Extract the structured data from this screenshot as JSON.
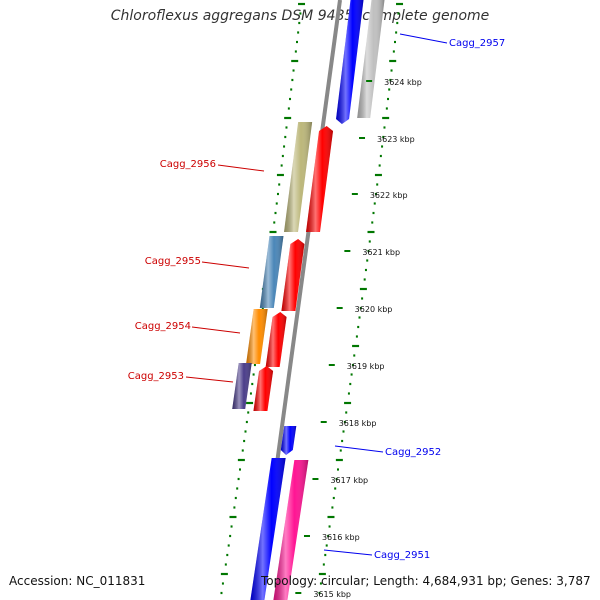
{
  "title": "Chloroflexus aggregans DSM 9485, complete genome",
  "footer": {
    "accession": "Accession: NC_011831",
    "summary": "Topology: circular; Length: 4,684,931 bp; Genes: 3,787"
  },
  "colors": {
    "forward": "#0000ee",
    "reverse": "#cc0000",
    "ticks": "#007700",
    "backbone": "#888888"
  },
  "scale_ticks": [
    "3624 kbp",
    "3623 kbp",
    "3622 kbp",
    "3621 kbp",
    "3620 kbp",
    "3619 kbp",
    "3618 kbp",
    "3617 kbp",
    "3616 kbp",
    "3615 kbp"
  ],
  "gene_labels": [
    {
      "name": "Cagg_2957",
      "strand": "forward"
    },
    {
      "name": "Cagg_2956",
      "strand": "reverse"
    },
    {
      "name": "Cagg_2955",
      "strand": "reverse"
    },
    {
      "name": "Cagg_2954",
      "strand": "reverse"
    },
    {
      "name": "Cagg_2953",
      "strand": "reverse"
    },
    {
      "name": "Cagg_2952",
      "strand": "forward"
    },
    {
      "name": "Cagg_2951",
      "strand": "forward"
    }
  ],
  "features": [
    {
      "kind": "cog",
      "color": "#c0c0c0"
    },
    {
      "kind": "cds",
      "color": "#0000ff"
    },
    {
      "kind": "cog",
      "color": "#bcb77a"
    },
    {
      "kind": "cds",
      "color": "#ff0000"
    },
    {
      "kind": "cog",
      "color": "#4a86b8"
    },
    {
      "kind": "cds",
      "color": "#ff0000"
    },
    {
      "kind": "cog",
      "color": "#ff8c00"
    },
    {
      "kind": "cds",
      "color": "#ff0000"
    },
    {
      "kind": "cog",
      "color": "#4a3d8a"
    },
    {
      "kind": "cds",
      "color": "#ff0000"
    },
    {
      "kind": "cds",
      "color": "#0000ff"
    },
    {
      "kind": "cds",
      "color": "#0000ff"
    },
    {
      "kind": "cog",
      "color": "#ff1493"
    }
  ]
}
